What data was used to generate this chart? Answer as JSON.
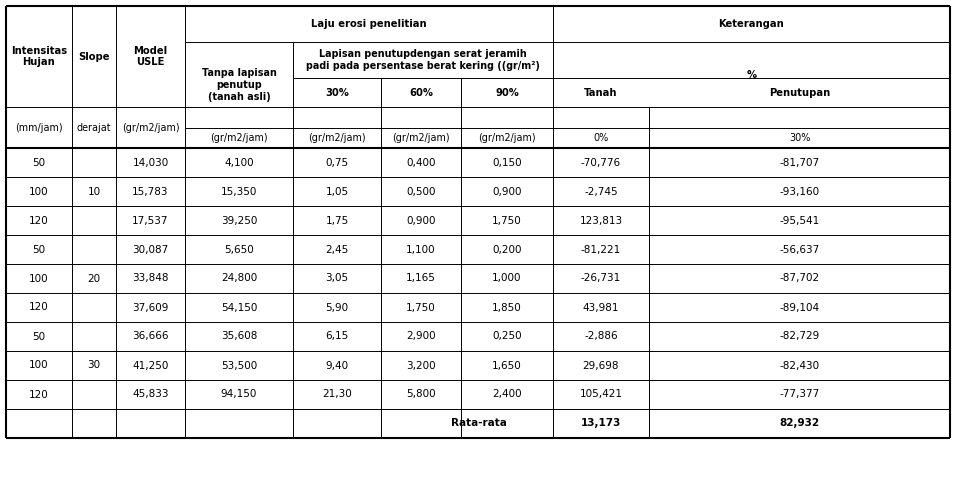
{
  "rows": [
    [
      "50",
      "",
      "14,030",
      "4,100",
      "0,75",
      "0,400",
      "0,150",
      "-70,776",
      "-81,707"
    ],
    [
      "100",
      "10",
      "15,783",
      "15,350",
      "1,05",
      "0,500",
      "0,900",
      "-2,745",
      "-93,160"
    ],
    [
      "120",
      "",
      "17,537",
      "39,250",
      "1,75",
      "0,900",
      "1,750",
      "123,813",
      "-95,541"
    ],
    [
      "50",
      "",
      "30,087",
      "5,650",
      "2,45",
      "1,100",
      "0,200",
      "-81,221",
      "-56,637"
    ],
    [
      "100",
      "20",
      "33,848",
      "24,800",
      "3,05",
      "1,165",
      "1,000",
      "-26,731",
      "-87,702"
    ],
    [
      "120",
      "",
      "37,609",
      "54,150",
      "5,90",
      "1,750",
      "1,850",
      "43,981",
      "-89,104"
    ],
    [
      "50",
      "",
      "36,666",
      "35,608",
      "6,15",
      "2,900",
      "0,250",
      "-2,886",
      "-82,729"
    ],
    [
      "100",
      "30",
      "41,250",
      "53,500",
      "9,40",
      "3,200",
      "1,650",
      "29,698",
      "-82,430"
    ],
    [
      "120",
      "",
      "45,833",
      "94,150",
      "21,30",
      "5,800",
      "2,400",
      "105,421",
      "-77,377"
    ]
  ],
  "rata_rata_label": "Rata-rata",
  "rata_rata_tanah": "13,173",
  "rata_rata_penutupan": "82,932",
  "laju_erosi_label": "Laju erosi penelitian",
  "keterangan_label": "Keterangan",
  "tanpa_label": "Tanpa lapisan\npenutup\n(tanah asli)",
  "lapisan_label": "Lapisan penutupdengan serat jeramih\npadi pada persentase berat kering ((gr/m²)",
  "pct_label": "%",
  "pct_cols": [
    "30%",
    "60%",
    "90%"
  ],
  "ket_cols": [
    "Tanah",
    "Penutupan"
  ],
  "units_row1": [
    "(mm/jam)",
    "derajat",
    "(gr/m2/jam)"
  ],
  "units_row2": [
    "(gr/m2/jam)",
    "(gr/m2/jam)",
    "(gr/m2/jam)",
    "(gr/m2/jam)",
    "0%",
    "30%"
  ],
  "intensitas_label": "Intensitas\nHujan",
  "slope_label": "Slope",
  "model_label": "Model\nUSLE"
}
